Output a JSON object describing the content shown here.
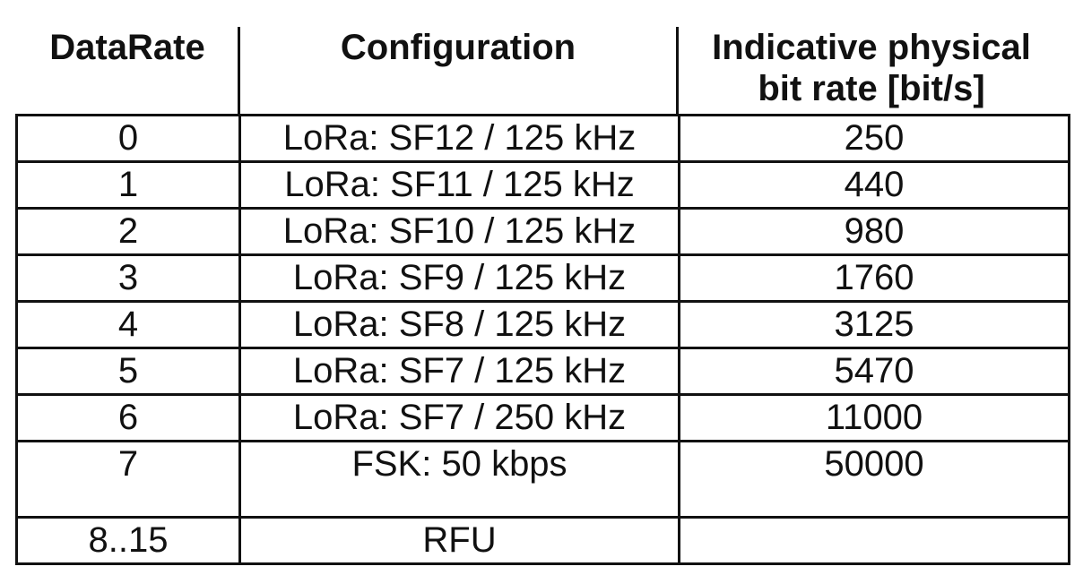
{
  "headers": {
    "datarate": "DataRate",
    "configuration": "Configuration",
    "bitrate_line1": "Indicative physical",
    "bitrate_line2": "bit rate [bit/s]"
  },
  "rows": [
    {
      "datarate": "0",
      "configuration": "LoRa: SF12 / 125 kHz",
      "bitrate": "250"
    },
    {
      "datarate": "1",
      "configuration": "LoRa: SF11 / 125 kHz",
      "bitrate": "440"
    },
    {
      "datarate": "2",
      "configuration": "LoRa: SF10 / 125 kHz",
      "bitrate": "980"
    },
    {
      "datarate": "3",
      "configuration": "LoRa: SF9 / 125 kHz",
      "bitrate": "1760"
    },
    {
      "datarate": "4",
      "configuration": "LoRa: SF8 / 125 kHz",
      "bitrate": "3125"
    },
    {
      "datarate": "5",
      "configuration": "LoRa: SF7 / 125 kHz",
      "bitrate": "5470"
    },
    {
      "datarate": "6",
      "configuration": "LoRa: SF7 / 250 kHz",
      "bitrate": "11000"
    },
    {
      "datarate": "7",
      "configuration": "FSK: 50 kbps",
      "bitrate": "50000"
    },
    {
      "datarate": "8..15",
      "configuration": "RFU",
      "bitrate": ""
    }
  ]
}
